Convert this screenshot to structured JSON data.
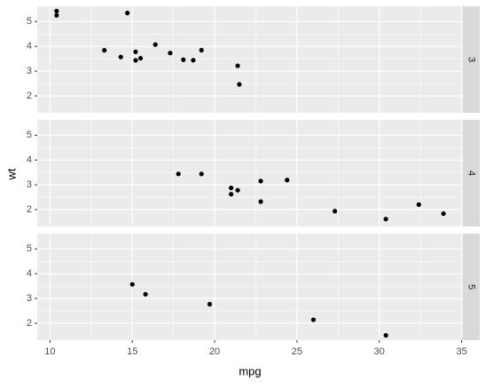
{
  "chart_data": {
    "type": "scatter",
    "xlabel": "mpg",
    "ylabel": "wt",
    "color": "#000000",
    "panel_color": "#ebebeb",
    "strip_color": "#d9d9d9",
    "grid": true,
    "xlim": [
      9.225,
      35.075
    ],
    "xticks": [
      10,
      15,
      20,
      25,
      30,
      35
    ],
    "ylim": [
      1.3174,
      5.6196
    ],
    "yticks": [
      2,
      3,
      4,
      5
    ],
    "facets": [
      {
        "label": "3",
        "x": [
          21.4,
          18.7,
          18.1,
          14.3,
          16.4,
          17.3,
          15.2,
          10.4,
          10.4,
          14.7,
          21.5,
          15.5,
          15.2,
          13.3,
          19.2
        ],
        "y": [
          3.215,
          3.44,
          3.46,
          3.57,
          4.07,
          3.73,
          3.78,
          5.25,
          5.424,
          5.345,
          2.465,
          3.52,
          3.435,
          3.84,
          3.845
        ]
      },
      {
        "label": "4",
        "x": [
          21.0,
          21.0,
          22.8,
          24.4,
          22.8,
          19.2,
          17.8,
          32.4,
          30.4,
          33.9,
          27.3,
          21.4
        ],
        "y": [
          2.62,
          2.875,
          2.32,
          3.19,
          3.15,
          3.44,
          3.44,
          2.2,
          1.615,
          1.835,
          1.935,
          2.78
        ]
      },
      {
        "label": "5",
        "x": [
          26.0,
          30.4,
          15.8,
          19.7,
          15.0
        ],
        "y": [
          2.14,
          1.513,
          3.17,
          2.77,
          3.57
        ]
      }
    ]
  }
}
